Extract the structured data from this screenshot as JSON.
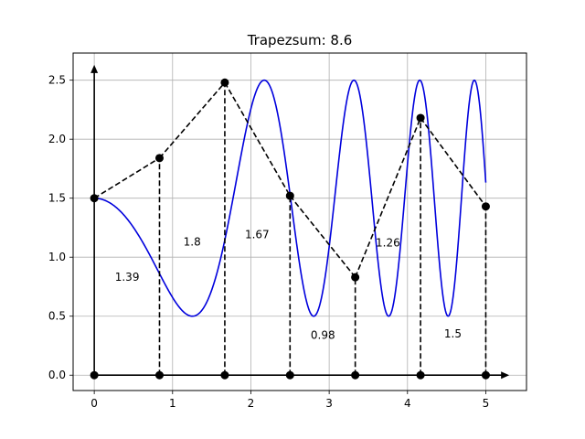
{
  "chart_data": {
    "type": "line",
    "title": "Trapezsum: 8.6",
    "xlabel": "",
    "ylabel": "",
    "xlim": [
      -0.27,
      5.52
    ],
    "ylim": [
      -0.13,
      2.73
    ],
    "grid": true,
    "x_ticks": [
      0,
      1,
      2,
      3,
      4,
      5
    ],
    "y_ticks": [
      0.0,
      0.5,
      1.0,
      1.5,
      2.0,
      2.5
    ],
    "x_tick_labels": [
      "0",
      "1",
      "2",
      "3",
      "4",
      "5"
    ],
    "y_tick_labels": [
      "0.0",
      "0.5",
      "1.0",
      "1.5",
      "2.0",
      "2.5"
    ],
    "curve_color": "#0000dd",
    "trapezoid_color": "#000000",
    "curve_function": "1.5 - sin(x^2)",
    "trapezoid_points": {
      "x": [
        0,
        0.833,
        1.667,
        2.5,
        3.333,
        4.167,
        5.0
      ],
      "y": [
        1.5,
        1.84,
        2.48,
        1.52,
        0.83,
        2.18,
        1.43
      ]
    },
    "area_labels": [
      {
        "text": "1.39",
        "x": 0.42,
        "y": 0.83
      },
      {
        "text": "1.8",
        "x": 1.25,
        "y": 1.13
      },
      {
        "text": "1.67",
        "x": 2.08,
        "y": 1.19
      },
      {
        "text": "0.98",
        "x": 2.92,
        "y": 0.34
      },
      {
        "text": "1.26",
        "x": 3.75,
        "y": 1.12
      },
      {
        "text": "1.5",
        "x": 4.58,
        "y": 0.35
      }
    ],
    "axis_arrows": {
      "x_end": 5.3,
      "y_end": 2.63
    }
  }
}
